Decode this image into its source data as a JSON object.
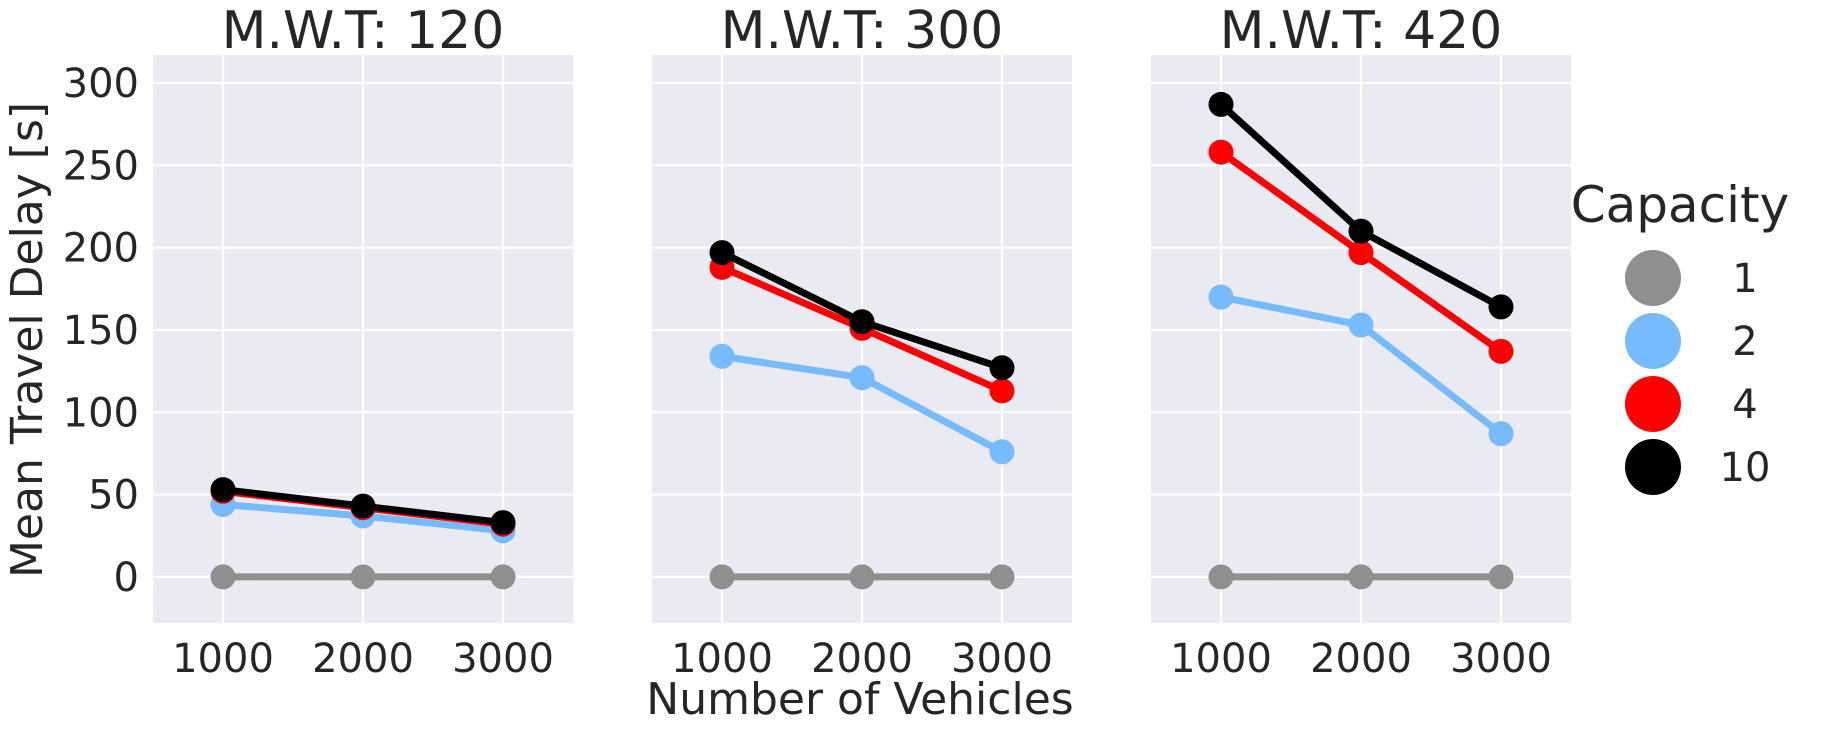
{
  "chart_data": {
    "type": "line",
    "ylabel": "Mean Travel Delay [s]",
    "xlabel": "Number of Vehicles",
    "x": [
      1000,
      2000,
      3000
    ],
    "x_ticks": [
      "1000",
      "2000",
      "3000"
    ],
    "y_ticks": [
      "0",
      "50",
      "100",
      "150",
      "200",
      "250",
      "300"
    ],
    "ylim": [
      -28,
      317
    ],
    "xlim": [
      500,
      3500
    ],
    "grid": true,
    "legend": {
      "title": "Capacity",
      "placement": "right",
      "entries": [
        {
          "label": "1",
          "color": "#8f8f8f"
        },
        {
          "label": "2",
          "color": "#75bbfd"
        },
        {
          "label": "4",
          "color": "#ff0000"
        },
        {
          "label": "10",
          "color": "#000000"
        }
      ]
    },
    "panels": [
      {
        "title": "M.W.T: 120",
        "series": [
          {
            "name": "1",
            "color": "#8f8f8f",
            "values": [
              0,
              0,
              0
            ]
          },
          {
            "name": "2",
            "color": "#75bbfd",
            "values": [
              44,
              37,
              28
            ]
          },
          {
            "name": "4",
            "color": "#ff0000",
            "values": [
              52,
              42,
              32
            ]
          },
          {
            "name": "10",
            "color": "#000000",
            "values": [
              53,
              43,
              33
            ]
          }
        ]
      },
      {
        "title": "M.W.T: 300",
        "series": [
          {
            "name": "1",
            "color": "#8f8f8f",
            "values": [
              0,
              0,
              0
            ]
          },
          {
            "name": "2",
            "color": "#75bbfd",
            "values": [
              134,
              121,
              76
            ]
          },
          {
            "name": "4",
            "color": "#ff0000",
            "values": [
              188,
              151,
              113
            ]
          },
          {
            "name": "10",
            "color": "#000000",
            "values": [
              197,
              155,
              127
            ]
          }
        ]
      },
      {
        "title": "M.W.T: 420",
        "series": [
          {
            "name": "1",
            "color": "#8f8f8f",
            "values": [
              0,
              0,
              0
            ]
          },
          {
            "name": "2",
            "color": "#75bbfd",
            "values": [
              170,
              153,
              87
            ]
          },
          {
            "name": "4",
            "color": "#ff0000",
            "values": [
              258,
              197,
              137
            ]
          },
          {
            "name": "10",
            "color": "#000000",
            "values": [
              287,
              210,
              164
            ]
          }
        ]
      }
    ]
  }
}
